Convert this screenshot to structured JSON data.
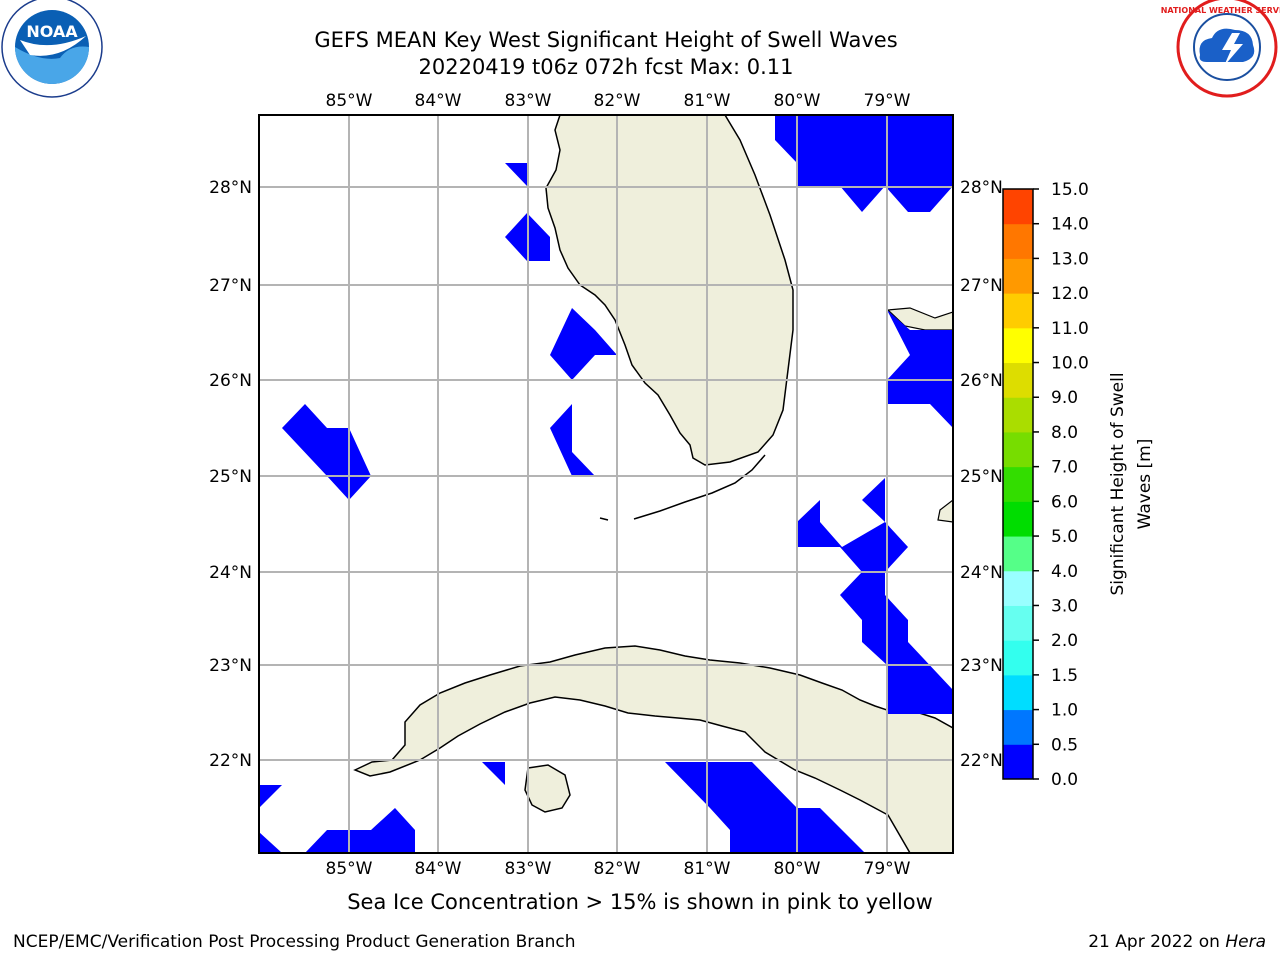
{
  "header": {
    "title_line1": "GEFS MEAN Key West Significant Height of Swell Waves",
    "title_line2": "20220419 t06z 072h fcst   Max: 0.11"
  },
  "logos": {
    "left": {
      "name": "NOAA",
      "ring_text": "NATIONAL OCEANIC AND ATMOSPHERIC ADMINISTRATION",
      "bottom_text": "U.S. DEPARTMENT OF COMMERCE"
    },
    "right": {
      "ring_text": "NATIONAL WEATHER SERVICE"
    }
  },
  "map": {
    "longitude_labels": [
      "85°W",
      "84°W",
      "83°W",
      "82°W",
      "81°W",
      "80°W",
      "79°W"
    ],
    "latitude_labels": [
      "28°N",
      "27°N",
      "26°N",
      "25°N",
      "24°N",
      "23°N",
      "22°N"
    ],
    "land_color": "#efefdc",
    "ocean_color": "#ffffff",
    "field_color": "#0000ff"
  },
  "colorbar": {
    "label_line1": "Significant Height of Swell",
    "label_line2": "Waves [m]",
    "ticks": [
      "0.0",
      "0.5",
      "1.0",
      "1.5",
      "2.0",
      "3.0",
      "4.0",
      "5.0",
      "6.0",
      "7.0",
      "8.0",
      "9.0",
      "10.0",
      "11.0",
      "12.0",
      "13.0",
      "14.0",
      "15.0"
    ],
    "colors": [
      "#0000ff",
      "#0077ff",
      "#00ddff",
      "#33ffee",
      "#66fff0",
      "#99ffff",
      "#55ff88",
      "#00dd00",
      "#33dd00",
      "#77dd00",
      "#aadd00",
      "#dddd00",
      "#ffff00",
      "#ffcc00",
      "#ff9900",
      "#ff7700",
      "#ff4400",
      "#ff0000"
    ]
  },
  "caption": "Sea Ice Concentration > 15% is shown in pink to yellow",
  "footer": {
    "left": "NCEP/EMC/Verification Post Processing Product Generation Branch",
    "right_date": "21 Apr 2022 on ",
    "right_host": "Hera"
  }
}
